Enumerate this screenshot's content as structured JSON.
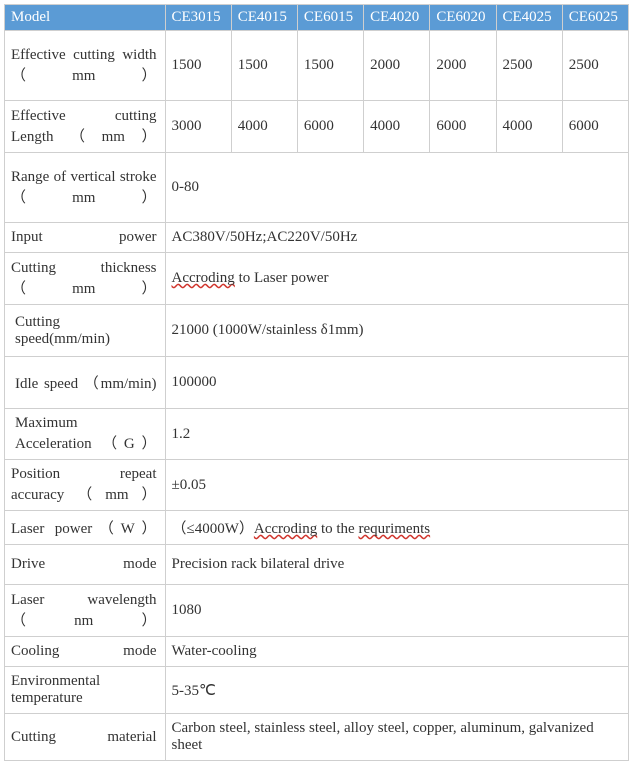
{
  "table": {
    "header_bg": "#5b9bd5",
    "header_color": "#ffffff",
    "border_color": "#cfcfcf",
    "text_color": "#333333",
    "font_family": "Times New Roman",
    "font_size_pt": 11,
    "columns": [
      "Model",
      "CE3015",
      "CE4015",
      "CE6015",
      "CE4020",
      "CE6020",
      "CE4025",
      "CE6025"
    ],
    "rows": {
      "cutting_width": {
        "label": "Effective cutting width（mm）",
        "values": [
          "1500",
          "1500",
          "1500",
          "2000",
          "2000",
          "2500",
          "2500"
        ]
      },
      "cutting_length": {
        "label": "Effective cutting Length（mm）",
        "values": [
          "3000",
          "4000",
          "6000",
          "4000",
          "6000",
          "4000",
          "6000"
        ]
      },
      "vertical_stroke": {
        "label": "Range of vertical stroke（mm）",
        "value": "0-80"
      },
      "input_power": {
        "label": "Input power",
        "value": "AC380V/50Hz;AC220V/50Hz"
      },
      "cutting_thickness": {
        "label": "Cutting thickness（mm）",
        "parts": {
          "p1": "Accroding",
          "p2": " to Laser power"
        }
      },
      "cutting_speed": {
        "label": "Cutting speed(mm/min)",
        "value": "21000 (1000W/stainless δ1mm)"
      },
      "idle_speed": {
        "label": "Idle speed （mm/min)",
        "value": "100000"
      },
      "max_accel": {
        "label": "Maximum Acceleration （G）",
        "value": "1.2"
      },
      "pos_repeat": {
        "label": "Position repeat accuracy（mm）",
        "value": "±0.05"
      },
      "laser_power": {
        "label": "Laser power（W）",
        "parts": {
          "p1": "（≤4000W）",
          "p2": "Accroding",
          "p3": " to the ",
          "p4": "requriments"
        }
      },
      "drive_mode": {
        "label": "Drive mode",
        "value": " Precision rack bilateral drive"
      },
      "wavelength": {
        "label": "Laser wavelength（nm）",
        "value": "1080"
      },
      "cooling": {
        "label": "Cooling mode",
        "value": "Water-cooling"
      },
      "env_temp": {
        "label": "Environmental temperature",
        "value": "5-35℃"
      },
      "material": {
        "label": "Cutting material",
        "value": "Carbon steel, stainless steel, alloy steel, copper, aluminum, galvanized sheet"
      }
    }
  }
}
